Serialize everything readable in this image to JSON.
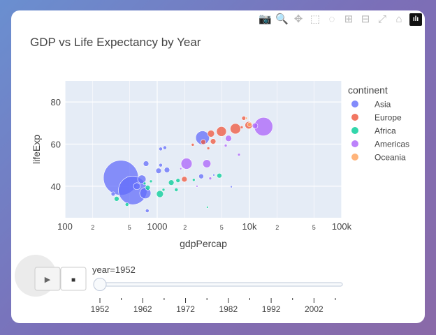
{
  "title": "GDP vs Life Expectancy by Year",
  "modebar": [
    {
      "icon": "camera-icon",
      "glyph": "📷",
      "label": "Download plot as png"
    },
    {
      "icon": "zoom-icon",
      "glyph": "🔍",
      "label": "Zoom",
      "active": true
    },
    {
      "icon": "pan-icon",
      "glyph": "✥",
      "label": "Pan"
    },
    {
      "icon": "box-select-icon",
      "glyph": "⬚",
      "label": "Box Select"
    },
    {
      "icon": "lasso-select-icon",
      "glyph": "◌",
      "label": "Lasso Select"
    },
    {
      "icon": "zoom-in-icon",
      "glyph": "⊞",
      "label": "Zoom in"
    },
    {
      "icon": "zoom-out-icon",
      "glyph": "⊟",
      "label": "Zoom out"
    },
    {
      "icon": "autoscale-icon",
      "glyph": "⤢",
      "label": "Autoscale"
    },
    {
      "icon": "home-icon",
      "glyph": "⌂",
      "label": "Reset axes"
    },
    {
      "icon": "plotly-logo-icon",
      "glyph": "ılı",
      "label": "Produced with Plotly"
    }
  ],
  "chart_data": {
    "type": "scatter",
    "title": "GDP vs Life Expectancy by Year",
    "xlabel": "gdpPercap",
    "ylabel": "lifeExp",
    "xscale": "log",
    "xlim": [
      100,
      100000
    ],
    "ylim": [
      25,
      90
    ],
    "xticks": [
      {
        "v": 100,
        "t": "100"
      },
      {
        "v": 200,
        "t": "2"
      },
      {
        "v": 500,
        "t": "5"
      },
      {
        "v": 1000,
        "t": "1000"
      },
      {
        "v": 2000,
        "t": "2"
      },
      {
        "v": 5000,
        "t": "5"
      },
      {
        "v": 10000,
        "t": "10k"
      },
      {
        "v": 20000,
        "t": "2"
      },
      {
        "v": 50000,
        "t": "5"
      },
      {
        "v": 100000,
        "t": "100k"
      }
    ],
    "yticks": [
      40,
      60,
      80
    ],
    "grid": true,
    "legend": {
      "title": "continent",
      "placement": "right"
    },
    "colors": {
      "Asia": "#636efa",
      "Europe": "#ef553b",
      "Africa": "#00cc96",
      "Americas": "#ab63fa",
      "Oceania": "#ffa15a"
    },
    "series": [
      {
        "name": "Asia",
        "points": [
          [
            404,
            44,
            556
          ],
          [
            543,
            38,
            372
          ],
          [
            681,
            43.3,
            32
          ],
          [
            743,
            36.7,
            57
          ],
          [
            602,
            40,
            22
          ],
          [
            333,
            36.3,
            8
          ],
          [
            757,
            50.7,
            14
          ],
          [
            1035,
            47.3,
            14
          ],
          [
            1090,
            50,
            6
          ],
          [
            1276,
            47.7,
            14
          ],
          [
            1090,
            57.7,
            6
          ],
          [
            1210,
            58.3,
            6
          ],
          [
            3100,
            63,
            86
          ],
          [
            3000,
            44.7,
            11
          ],
          [
            780,
            28.3,
            6
          ],
          [
            6360,
            39.7,
            2
          ],
          [
            4110,
            45.3,
            2
          ]
        ]
      },
      {
        "name": "Europe",
        "points": [
          [
            7050,
            67.3,
            50
          ],
          [
            4970,
            66,
            44
          ],
          [
            3830,
            65,
            22
          ],
          [
            4040,
            61.3,
            14
          ],
          [
            3160,
            61,
            11
          ],
          [
            9820,
            69,
            25
          ],
          [
            8690,
            72.3,
            8
          ],
          [
            2430,
            59.7,
            3.6
          ],
          [
            1970,
            43.3,
            14
          ],
          [
            3580,
            58,
            3.6
          ],
          [
            8250,
            68,
            3.6
          ]
        ]
      },
      {
        "name": "Africa",
        "points": [
          [
            1070,
            36.3,
            22
          ],
          [
            1420,
            41.7,
            14
          ],
          [
            1680,
            42.7,
            8
          ],
          [
            1610,
            38.3,
            6
          ],
          [
            4720,
            45,
            11
          ],
          [
            363,
            34,
            11
          ],
          [
            790,
            39.3,
            11
          ],
          [
            2490,
            43,
            3.6
          ],
          [
            3500,
            30,
            2
          ],
          [
            470,
            31.3,
            6
          ],
          [
            855,
            42.3,
            3.6
          ],
          [
            1170,
            38.3,
            3.6
          ],
          [
            730,
            41.3,
            3.6
          ]
        ]
      },
      {
        "name": "Americas",
        "points": [
          [
            14200,
            68.3,
            157
          ],
          [
            2080,
            50.7,
            56
          ],
          [
            3450,
            50.7,
            30
          ],
          [
            5930,
            62.7,
            18
          ],
          [
            11500,
            68.7,
            14
          ],
          [
            5530,
            59.3,
            3.6
          ],
          [
            7700,
            55,
            3.6
          ],
          [
            3760,
            43.7,
            3.6
          ],
          [
            1800,
            48.3,
            2
          ],
          [
            2700,
            40,
            2
          ]
        ]
      },
      {
        "name": "Oceania",
        "points": [
          [
            10000,
            69.3,
            8
          ],
          [
            9300,
            72.3,
            2
          ]
        ]
      }
    ]
  },
  "slider": {
    "play_label": "▶",
    "stop_label": "■",
    "current_prefix": "year=",
    "current_value": "1952",
    "value": 1952,
    "min": 1952,
    "max": 2007,
    "steps": [
      1952,
      1957,
      1962,
      1967,
      1972,
      1977,
      1982,
      1987,
      1992,
      1997,
      2002,
      2007
    ],
    "labels": [
      "1952",
      "1962",
      "1972",
      "1982",
      "1992",
      "2002"
    ]
  }
}
